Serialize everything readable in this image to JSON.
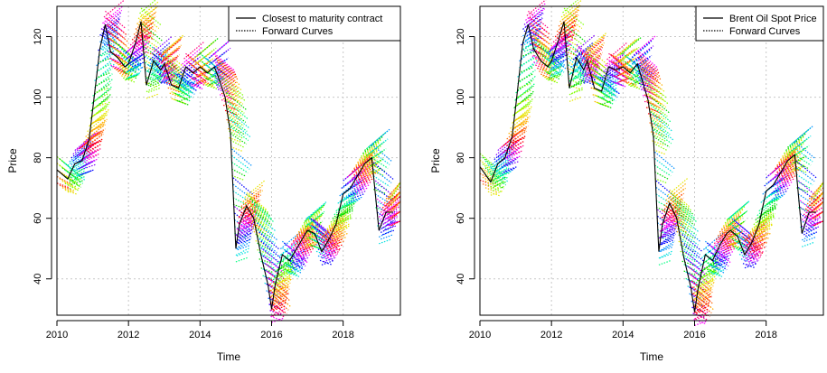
{
  "chart_data": [
    {
      "type": "line",
      "xlabel": "Time",
      "ylabel": "Price",
      "xlim": [
        2010,
        2019.6
      ],
      "ylim": [
        28,
        130
      ],
      "xticks": [
        2010,
        2012,
        2014,
        2016,
        2018
      ],
      "yticks": [
        40,
        60,
        80,
        100,
        120
      ],
      "grid": true,
      "legend_position": "top-right",
      "series": [
        {
          "name": "Closest to maturity contract",
          "style": "solid",
          "color": "#000000",
          "x": [
            2010.0,
            2010.3,
            2010.5,
            2010.7,
            2010.9,
            2011.0,
            2011.2,
            2011.35,
            2011.5,
            2011.7,
            2011.9,
            2012.0,
            2012.2,
            2012.35,
            2012.5,
            2012.7,
            2012.9,
            2013.0,
            2013.2,
            2013.4,
            2013.6,
            2013.8,
            2014.0,
            2014.2,
            2014.4,
            2014.5,
            2014.7,
            2014.85,
            2015.0,
            2015.1,
            2015.3,
            2015.5,
            2015.7,
            2015.9,
            2016.0,
            2016.1,
            2016.3,
            2016.5,
            2016.7,
            2016.9,
            2017.0,
            2017.2,
            2017.4,
            2017.6,
            2017.8,
            2018.0,
            2018.2,
            2018.4,
            2018.6,
            2018.8,
            2019.0,
            2019.2,
            2019.4
          ],
          "y": [
            76,
            73,
            78,
            79,
            86,
            96,
            116,
            124,
            115,
            113,
            110,
            111,
            118,
            125,
            104,
            112,
            109,
            111,
            104,
            103,
            110,
            108,
            110,
            108,
            110,
            107,
            100,
            88,
            50,
            58,
            64,
            60,
            48,
            38,
            30,
            38,
            48,
            46,
            50,
            54,
            56,
            55,
            49,
            53,
            58,
            68,
            70,
            74,
            78,
            80,
            56,
            62,
            62
          ]
        },
        {
          "name": "Forward Curves",
          "style": "dotted",
          "color": "multicolor"
        }
      ]
    },
    {
      "type": "line",
      "xlabel": "Time",
      "ylabel": "Price",
      "xlim": [
        2010,
        2019.6
      ],
      "ylim": [
        28,
        130
      ],
      "xticks": [
        2010,
        2012,
        2014,
        2016,
        2018
      ],
      "yticks": [
        40,
        60,
        80,
        100,
        120
      ],
      "grid": true,
      "legend_position": "top-right",
      "series": [
        {
          "name": "Brent Oil Spot Price",
          "style": "solid",
          "color": "#000000",
          "x": [
            2010.0,
            2010.3,
            2010.5,
            2010.7,
            2010.9,
            2011.0,
            2011.2,
            2011.35,
            2011.5,
            2011.7,
            2011.9,
            2012.0,
            2012.2,
            2012.35,
            2012.5,
            2012.7,
            2012.9,
            2013.0,
            2013.2,
            2013.4,
            2013.6,
            2013.8,
            2014.0,
            2014.2,
            2014.4,
            2014.5,
            2014.7,
            2014.85,
            2015.0,
            2015.1,
            2015.3,
            2015.5,
            2015.7,
            2015.9,
            2016.0,
            2016.1,
            2016.3,
            2016.5,
            2016.7,
            2016.9,
            2017.0,
            2017.2,
            2017.4,
            2017.6,
            2017.8,
            2018.0,
            2018.2,
            2018.4,
            2018.6,
            2018.8,
            2019.0,
            2019.2,
            2019.4
          ],
          "y": [
            77,
            72,
            78,
            80,
            87,
            97,
            118,
            124,
            116,
            112,
            110,
            112,
            119,
            125,
            103,
            113,
            109,
            112,
            103,
            102,
            110,
            109,
            110,
            108,
            111,
            107,
            99,
            87,
            49,
            58,
            65,
            60,
            47,
            37,
            29,
            37,
            48,
            46,
            51,
            55,
            56,
            54,
            48,
            52,
            58,
            69,
            71,
            75,
            79,
            81,
            55,
            62,
            62
          ]
        },
        {
          "name": "Forward Curves",
          "style": "dotted",
          "color": "multicolor"
        }
      ]
    }
  ]
}
